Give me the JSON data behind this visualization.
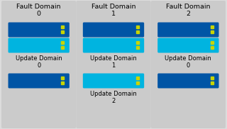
{
  "background_color": "#dcdcdc",
  "panel_color": "#cbcbcb",
  "dark_blue": "#0055a5",
  "cyan": "#00b4e0",
  "yellow_dot": "#c8d400",
  "fault_domains": [
    {
      "title": "Fault Domain\n0",
      "vms": [
        "dark_blue",
        "cyan",
        "dark_blue"
      ],
      "ud_labels": [
        null,
        "Update Domain\n0",
        null
      ]
    },
    {
      "title": "Fault Domain\n1",
      "vms": [
        "dark_blue",
        "cyan",
        "cyan"
      ],
      "ud_labels": [
        null,
        "Update Domain\n1",
        "Update Domain\n2"
      ]
    },
    {
      "title": "Fault Domain\n2",
      "vms": [
        "dark_blue",
        "cyan",
        "dark_blue"
      ],
      "ud_labels": [
        null,
        "Update Domain\n0",
        null
      ]
    }
  ],
  "n_panels": 3,
  "title_fontsize": 6.8,
  "label_fontsize": 6.0,
  "fig_width": 3.2,
  "fig_height": 1.82,
  "dpi": 100
}
